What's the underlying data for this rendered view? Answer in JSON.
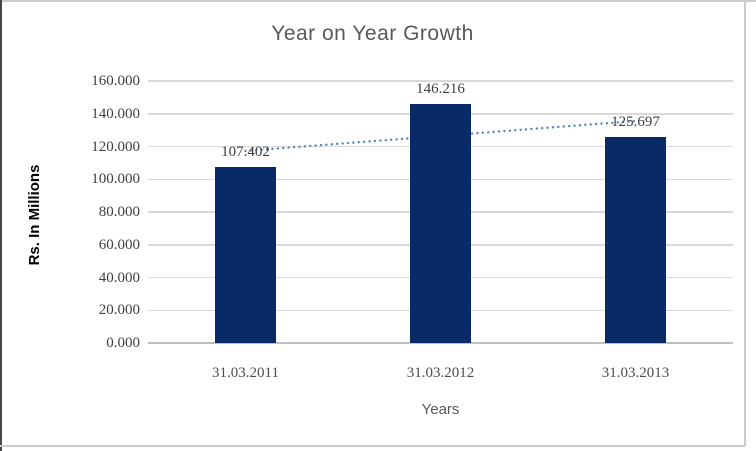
{
  "chart_data": {
    "type": "bar",
    "title": "Year on Year Growth",
    "categories": [
      "31.03.2011",
      "31.03.2012",
      "31.03.2013"
    ],
    "values": [
      107.402,
      146.216,
      125.697
    ],
    "data_labels": [
      "107.402",
      "146.216",
      "125.697"
    ],
    "xlabel": "Years",
    "ylabel": "Rs. In Millions",
    "ylim": [
      0,
      160
    ],
    "ytick_step": 20,
    "ytick_decimals": 3,
    "grid": true,
    "legend": "none",
    "bar_color": "#0a2a66",
    "trendline": {
      "type": "linear",
      "style": "dotted",
      "color": "#4f84c4"
    },
    "colors": {
      "title": "#595959",
      "tick_labels": "#404040",
      "data_labels": "#3f3f3f",
      "category_labels": "#4d4d4d",
      "axis_title_y": "#000000",
      "axis_title_x": "#595959",
      "gridline": "#d9d9d9",
      "axis_line": "#bfbfbf",
      "chart_border": "#cbcbcb",
      "left_edge": "#474747",
      "background": "#ffffff"
    }
  }
}
